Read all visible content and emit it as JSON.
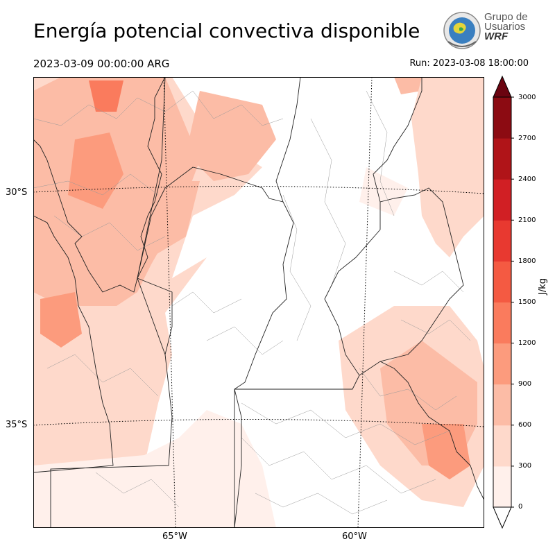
{
  "title": "Energía potencial convectiva disponible",
  "valid_time": "2023-03-09 00:00:00 ARG",
  "run_time": "Run: 2023-03-08 18:00:00",
  "logo": {
    "line1": "Grupo de",
    "line2": "Usuarios",
    "line3": "WRF"
  },
  "axes": {
    "lat_labels": [
      "30°S",
      "35°S"
    ],
    "lon_labels": [
      "65°W",
      "60°W"
    ]
  },
  "colorbar": {
    "unit": "J/kg",
    "ticks": [
      "0",
      "300",
      "600",
      "900",
      "1200",
      "1500",
      "1800",
      "2100",
      "2400",
      "2700",
      "3000"
    ],
    "colors": [
      "#fff0eb",
      "#fed9cb",
      "#fcbca6",
      "#fc9b7d",
      "#fa7b5d",
      "#f45a42",
      "#e83930",
      "#d11f24",
      "#b01418",
      "#8c0b12",
      "#6b0410"
    ],
    "extend": "both"
  }
}
